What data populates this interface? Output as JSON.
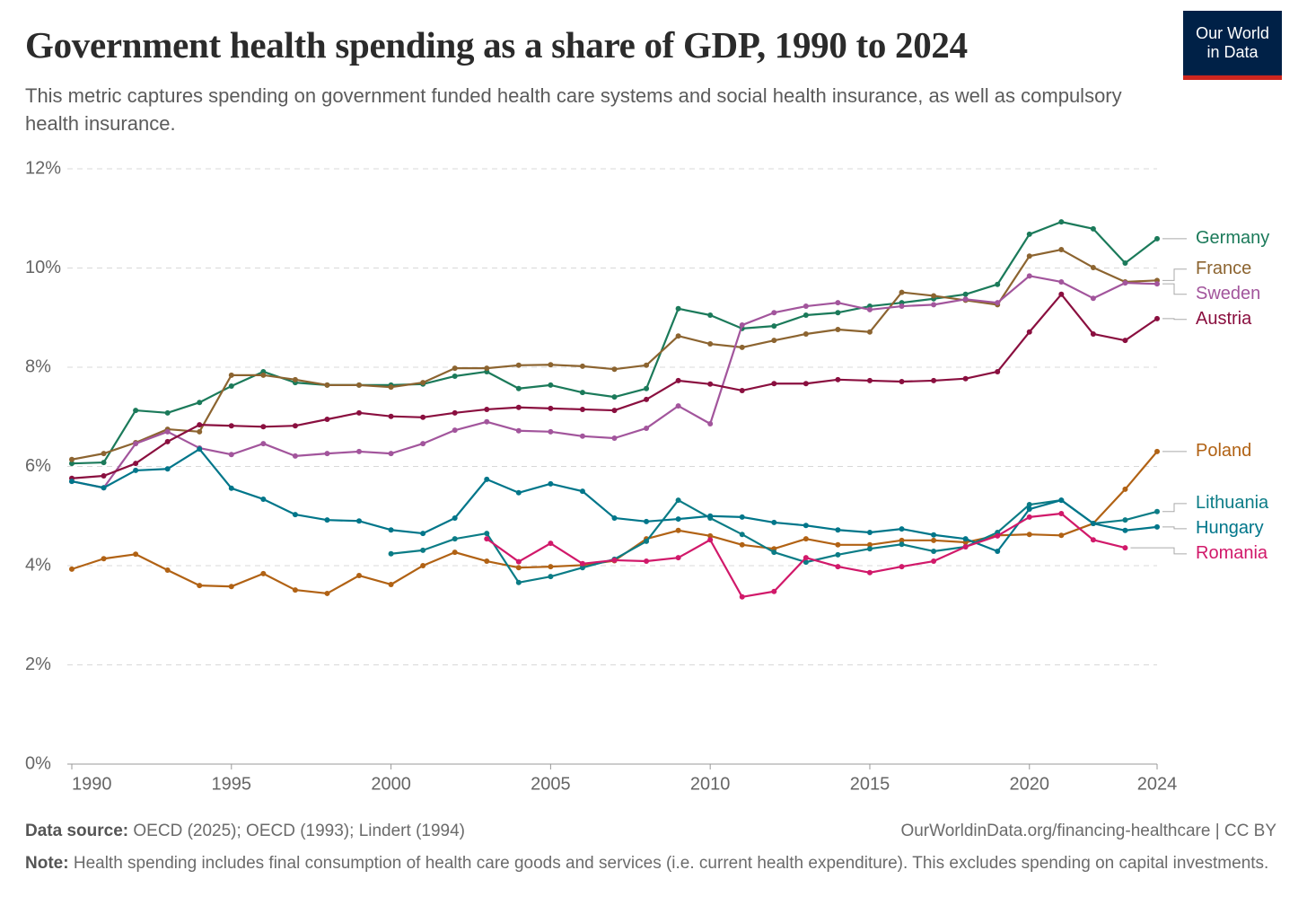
{
  "chart_data": {
    "type": "line",
    "title": "Government health spending as a share of GDP, 1990 to 2024",
    "subtitle": "This metric captures spending on government funded health care systems and social health insurance, as well as compulsory health insurance.",
    "logo": "Our World in Data",
    "source_label": "Data source:",
    "source": "OECD (2025); OECD (1993); Lindert (1994)",
    "site": "OurWorldinData.org/financing-healthcare | CC BY",
    "note_label": "Note:",
    "note": "Health spending includes final consumption of health care goods and services (i.e. current health expenditure). This excludes spending on capital investments.",
    "x": [
      1990,
      1991,
      1992,
      1993,
      1994,
      1995,
      1996,
      1997,
      1998,
      1999,
      2000,
      2001,
      2002,
      2003,
      2004,
      2005,
      2006,
      2007,
      2008,
      2009,
      2010,
      2011,
      2012,
      2013,
      2014,
      2015,
      2016,
      2017,
      2018,
      2019,
      2020,
      2021,
      2022,
      2023,
      2024
    ],
    "xlim": [
      1990,
      2024
    ],
    "xticks": [
      1990,
      1995,
      2000,
      2005,
      2010,
      2015,
      2020,
      2024
    ],
    "ylim": [
      0,
      12
    ],
    "yticks": [
      {
        "value": 0,
        "label": "0%"
      },
      {
        "value": 2,
        "label": "2%"
      },
      {
        "value": 4,
        "label": "4%"
      },
      {
        "value": 6,
        "label": "6%"
      },
      {
        "value": 8,
        "label": "8%"
      },
      {
        "value": 10,
        "label": "10%"
      },
      {
        "value": 12,
        "label": "12%"
      }
    ],
    "grid": true,
    "series": [
      {
        "name": "Germany",
        "color": "#1b7a5a",
        "values": [
          6.06,
          6.08,
          7.13,
          7.08,
          7.29,
          7.62,
          7.91,
          7.69,
          7.64,
          7.64,
          7.64,
          7.66,
          7.82,
          7.91,
          7.57,
          7.64,
          7.49,
          7.4,
          7.57,
          9.18,
          9.05,
          8.78,
          8.83,
          9.05,
          9.1,
          9.23,
          9.3,
          9.38,
          9.47,
          9.67,
          10.68,
          10.93,
          10.79,
          10.1,
          10.59
        ]
      },
      {
        "name": "France",
        "color": "#8c6430",
        "values": [
          6.14,
          6.26,
          6.48,
          6.75,
          6.7,
          7.84,
          7.84,
          7.75,
          7.64,
          7.64,
          7.6,
          7.69,
          7.98,
          7.98,
          8.04,
          8.05,
          8.02,
          7.96,
          8.04,
          8.63,
          8.47,
          8.4,
          8.54,
          8.67,
          8.76,
          8.71,
          9.51,
          9.44,
          9.35,
          9.26,
          10.24,
          10.37,
          10.01,
          9.72,
          9.75
        ]
      },
      {
        "name": "Sweden",
        "color": "#a2559c",
        "values": [
          5.7,
          5.57,
          6.46,
          6.7,
          6.37,
          6.24,
          6.46,
          6.21,
          6.26,
          6.3,
          6.26,
          6.46,
          6.73,
          6.9,
          6.72,
          6.7,
          6.61,
          6.57,
          6.77,
          7.22,
          6.86,
          8.85,
          9.1,
          9.23,
          9.3,
          9.16,
          9.23,
          9.26,
          9.37,
          9.3,
          9.84,
          9.72,
          9.39,
          9.7,
          9.68
        ]
      },
      {
        "name": "Austria",
        "color": "#8a0f3f",
        "values": [
          5.76,
          5.81,
          6.06,
          6.5,
          6.84,
          6.82,
          6.8,
          6.82,
          6.95,
          7.08,
          7.01,
          6.99,
          7.08,
          7.15,
          7.19,
          7.17,
          7.15,
          7.13,
          7.35,
          7.73,
          7.66,
          7.53,
          7.67,
          7.67,
          7.75,
          7.73,
          7.71,
          7.73,
          7.77,
          7.91,
          8.71,
          9.47,
          8.67,
          8.54,
          8.98
        ]
      },
      {
        "name": "Poland",
        "color": "#b16214",
        "values": [
          3.93,
          4.14,
          4.23,
          3.91,
          3.6,
          3.58,
          3.84,
          3.51,
          3.44,
          3.8,
          3.62,
          4.0,
          4.27,
          4.09,
          3.96,
          3.98,
          4.01,
          4.1,
          4.54,
          4.71,
          4.6,
          4.42,
          4.34,
          4.54,
          4.42,
          4.42,
          4.51,
          4.51,
          4.47,
          4.61,
          4.63,
          4.61,
          4.85,
          5.54,
          6.3
        ]
      },
      {
        "name": "Lithuania",
        "color": "#0b7c86",
        "values": [
          null,
          null,
          null,
          null,
          null,
          null,
          null,
          null,
          null,
          null,
          4.24,
          4.31,
          4.54,
          4.65,
          3.66,
          3.78,
          3.96,
          4.13,
          4.49,
          5.32,
          4.96,
          4.63,
          4.27,
          4.07,
          4.22,
          4.34,
          4.43,
          4.29,
          4.38,
          4.67,
          5.23,
          5.32,
          4.85,
          4.92,
          5.09
        ]
      },
      {
        "name": "Hungary",
        "color": "#00768a",
        "values": [
          5.7,
          5.57,
          5.92,
          5.95,
          6.35,
          5.56,
          5.34,
          5.03,
          4.92,
          4.9,
          4.72,
          4.65,
          4.96,
          5.74,
          5.47,
          5.65,
          5.5,
          4.96,
          4.89,
          4.94,
          5.0,
          4.98,
          4.87,
          4.81,
          4.72,
          4.67,
          4.74,
          4.62,
          4.54,
          4.29,
          5.14,
          5.32,
          4.85,
          4.71,
          4.78
        ]
      },
      {
        "name": "Romania",
        "color": "#d1196a",
        "values": [
          null,
          null,
          null,
          null,
          null,
          null,
          null,
          null,
          null,
          null,
          null,
          null,
          null,
          4.54,
          4.08,
          4.45,
          4.04,
          4.11,
          4.09,
          4.16,
          4.52,
          3.37,
          3.48,
          4.16,
          3.98,
          3.86,
          3.98,
          4.09,
          4.38,
          4.6,
          4.98,
          5.05,
          4.52,
          4.36,
          null
        ]
      }
    ]
  }
}
